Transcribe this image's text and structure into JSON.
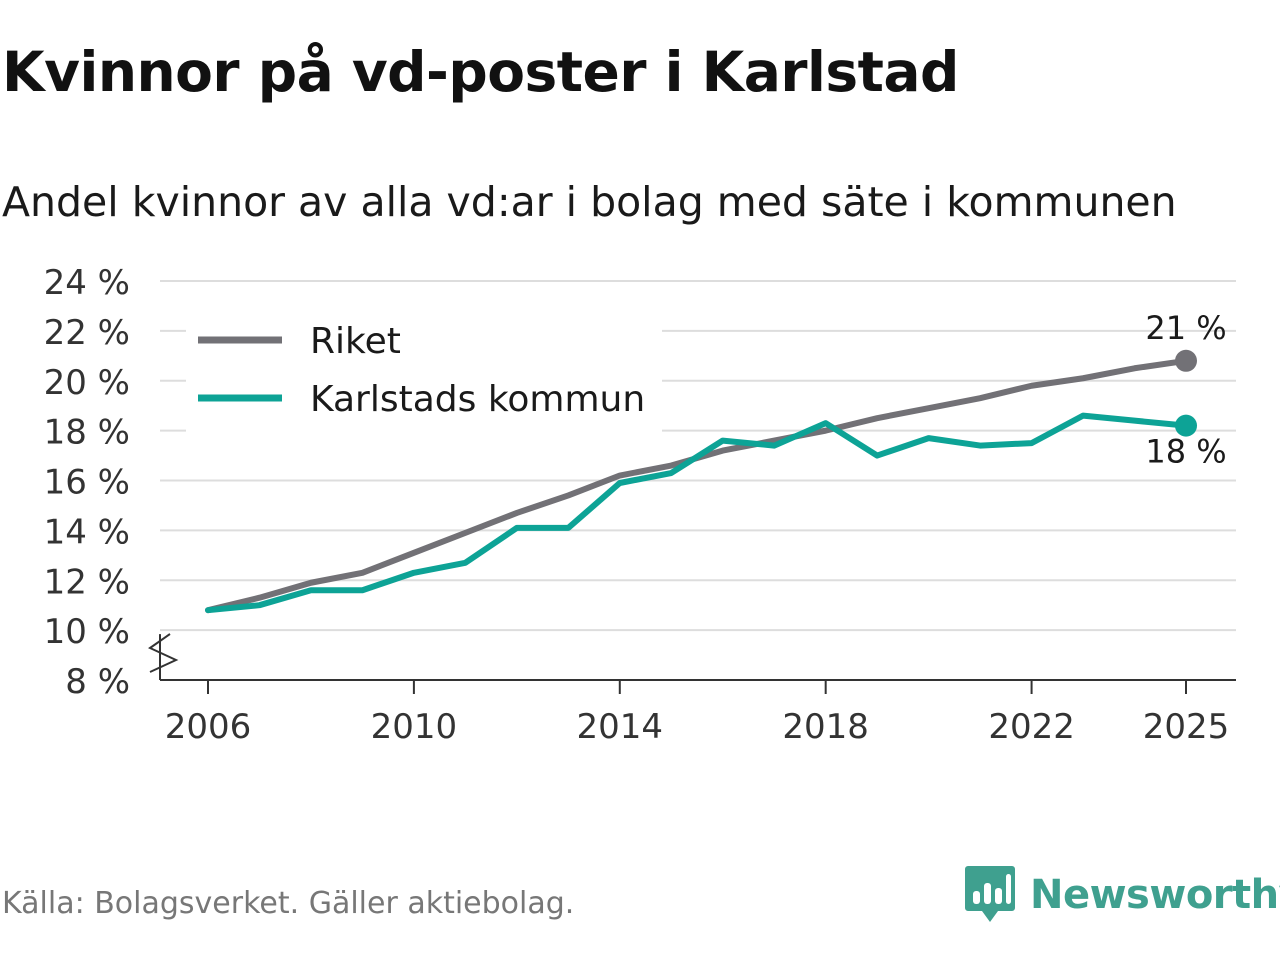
{
  "title": "Kvinnor på vd-poster i Karlstad",
  "subtitle": "Andel kvinnor av alla vd:ar i bolag med säte i kommunen",
  "source": "Källa: Bolagsverket. Gäller aktiebolag.",
  "brand": "Newsworthy",
  "colors": {
    "riket": "#727176",
    "karlstad": "#0da396",
    "grid": "#dddddd",
    "brand": "#3fa08f"
  },
  "chart_data": {
    "type": "line",
    "x": [
      2006,
      2007,
      2008,
      2009,
      2010,
      2011,
      2012,
      2013,
      2014,
      2015,
      2016,
      2017,
      2018,
      2019,
      2020,
      2021,
      2022,
      2023,
      2024,
      2025
    ],
    "series": [
      {
        "name": "Riket",
        "color": "#727176",
        "values": [
          10.8,
          11.3,
          11.9,
          12.3,
          13.1,
          13.9,
          14.7,
          15.4,
          16.2,
          16.6,
          17.2,
          17.6,
          18.0,
          18.5,
          18.9,
          19.3,
          19.8,
          20.1,
          20.5,
          20.8
        ]
      },
      {
        "name": "Karlstads kommun",
        "color": "#0da396",
        "values": [
          10.8,
          11.0,
          11.6,
          11.6,
          12.3,
          12.7,
          14.1,
          14.1,
          15.9,
          16.3,
          17.6,
          17.4,
          18.3,
          17.0,
          17.7,
          17.4,
          17.5,
          18.6,
          18.4,
          18.2
        ]
      }
    ],
    "end_labels": [
      "21 %",
      "18 %"
    ],
    "y_ticks": [
      8,
      10,
      12,
      14,
      16,
      18,
      20,
      22,
      24
    ],
    "y_tick_labels": [
      "8 %",
      "10 %",
      "12 %",
      "14 %",
      "16 %",
      "18 %",
      "20 %",
      "22 %",
      "24 %"
    ],
    "x_ticks": [
      2006,
      2010,
      2014,
      2018,
      2022,
      2025
    ],
    "x_tick_labels": [
      "2006",
      "2010",
      "2014",
      "2018",
      "2022",
      "2025"
    ],
    "ylim": [
      8,
      24
    ],
    "xlim": [
      2006,
      2025
    ],
    "axis_break": true,
    "legend_position": "top-left",
    "grid": true
  }
}
